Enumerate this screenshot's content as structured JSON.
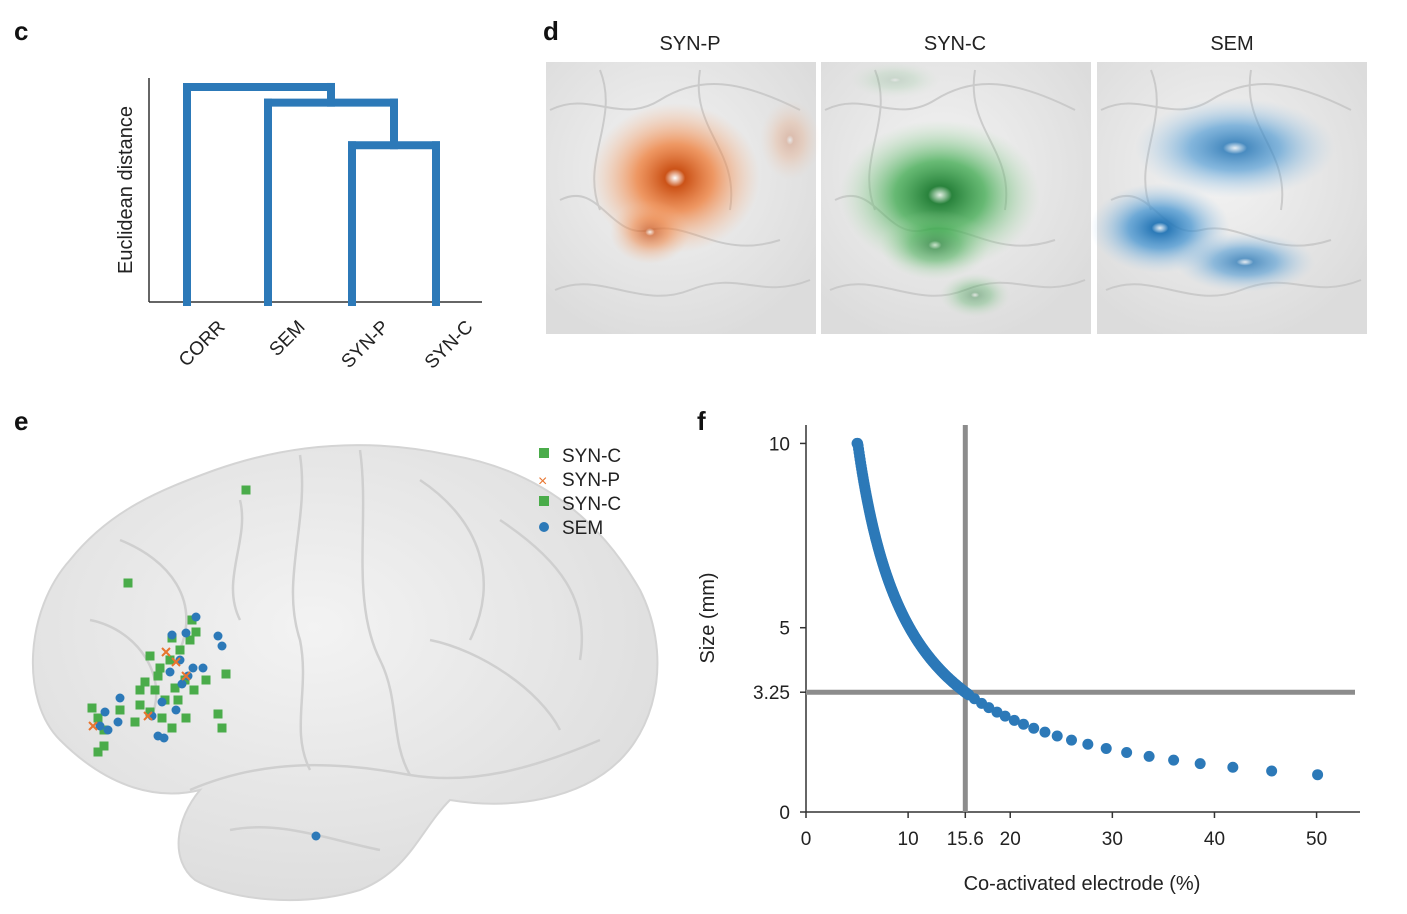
{
  "panels": {
    "c": {
      "letter": "c"
    },
    "d": {
      "letter": "d",
      "titles": [
        "SYN-P",
        "SYN-C",
        "SEM"
      ]
    },
    "e": {
      "letter": "e"
    },
    "f": {
      "letter": "f"
    }
  },
  "colors": {
    "blue": "#2c79b8",
    "green": "#4aac4a",
    "orange": "#e8752f",
    "gray": "#8c8c8c",
    "brain": "#e9e9e9"
  },
  "chart_data": [
    {
      "panel": "c",
      "type": "dendrogram",
      "ylabel": "Euclidean distance",
      "leaves": [
        "CORR",
        "SEM",
        "SYN-P",
        "SYN-C"
      ],
      "merges": [
        {
          "pair": [
            "SYN-P",
            "SYN-C"
          ],
          "height": 0.7
        },
        {
          "pair": [
            "SEM",
            "SYN-P+SYN-C"
          ],
          "height": 0.89
        },
        {
          "pair": [
            "CORR",
            "SEM+SYN-P+SYN-C"
          ],
          "height": 0.96
        }
      ]
    },
    {
      "panel": "d",
      "type": "heatmap",
      "titles": [
        "SYN-P",
        "SYN-C",
        "SEM"
      ],
      "colors": [
        "#e8752f",
        "#2e9a3e",
        "#2f86c6"
      ]
    },
    {
      "panel": "e",
      "type": "scatter",
      "legend": [
        {
          "label": "SYN-C",
          "marker": "square",
          "color": "#4aac4a"
        },
        {
          "label": "SYN-P",
          "marker": "x",
          "color": "#e8752f"
        },
        {
          "label": "SYN-C",
          "marker": "square",
          "color": "#4aac4a"
        },
        {
          "label": "SEM",
          "marker": "circle",
          "color": "#2c79b8"
        }
      ],
      "legend_position": "top-right"
    },
    {
      "panel": "f",
      "type": "scatter",
      "xlabel": "Co-activated electrode (%)",
      "ylabel": "Size (mm)",
      "xlim": [
        0,
        52
      ],
      "ylim": [
        0,
        10.5
      ],
      "xticks": [
        "0",
        "10",
        "15.6",
        "20",
        "30",
        "40",
        "50"
      ],
      "xtick_values": [
        0,
        10,
        15.6,
        20,
        30,
        40,
        50
      ],
      "yticks": [
        "0",
        "3.25",
        "5",
        "10"
      ],
      "ytick_values": [
        0,
        3.25,
        5,
        10
      ],
      "reference": {
        "x": 15.6,
        "y": 3.25
      },
      "curve": {
        "formula": "y = 50.7 / x",
        "x_dense_range": [
          5,
          16
        ],
        "x_sparse": [
          16.5,
          17.2,
          17.9,
          18.7,
          19.5,
          20.4,
          21.3,
          22.3,
          23.4,
          24.6,
          26,
          27.6,
          29.4,
          31.4,
          33.6,
          36,
          38.6,
          41.8,
          45.6,
          50.1
        ]
      }
    }
  ]
}
